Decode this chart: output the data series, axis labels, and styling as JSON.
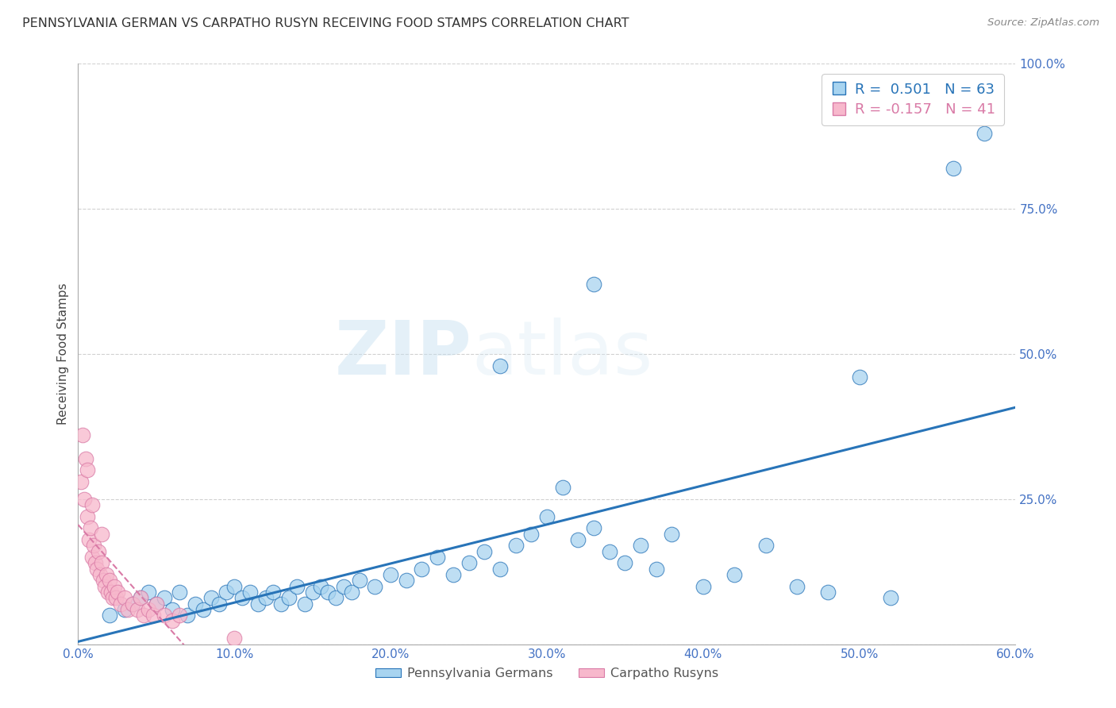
{
  "title": "PENNSYLVANIA GERMAN VS CARPATHO RUSYN RECEIVING FOOD STAMPS CORRELATION CHART",
  "source": "Source: ZipAtlas.com",
  "ylabel_label": "Receiving Food Stamps",
  "xlim": [
    0.0,
    0.6
  ],
  "ylim": [
    0.0,
    1.0
  ],
  "xticks": [
    0.0,
    0.1,
    0.2,
    0.3,
    0.4,
    0.5,
    0.6
  ],
  "yticks": [
    0.0,
    0.25,
    0.5,
    0.75,
    1.0
  ],
  "xticklabels": [
    "0.0%",
    "10.0%",
    "20.0%",
    "30.0%",
    "40.0%",
    "50.0%",
    "60.0%"
  ],
  "yticklabels": [
    "",
    "25.0%",
    "50.0%",
    "75.0%",
    "100.0%"
  ],
  "R_blue": 0.501,
  "N_blue": 63,
  "R_pink": -0.157,
  "N_pink": 41,
  "blue_color": "#a8d4f0",
  "pink_color": "#f7b8cc",
  "blue_line_color": "#2874b8",
  "pink_line_color": "#d97aa6",
  "watermark_zip": "ZIP",
  "watermark_atlas": "atlas",
  "legend_label_blue": "Pennsylvania Germans",
  "legend_label_pink": "Carpatho Rusyns",
  "blue_scatter_x": [
    0.02,
    0.03,
    0.035,
    0.04,
    0.045,
    0.05,
    0.055,
    0.06,
    0.065,
    0.07,
    0.075,
    0.08,
    0.085,
    0.09,
    0.095,
    0.1,
    0.105,
    0.11,
    0.115,
    0.12,
    0.125,
    0.13,
    0.135,
    0.14,
    0.145,
    0.15,
    0.155,
    0.16,
    0.165,
    0.17,
    0.175,
    0.18,
    0.19,
    0.2,
    0.21,
    0.22,
    0.23,
    0.24,
    0.25,
    0.26,
    0.27,
    0.28,
    0.29,
    0.3,
    0.31,
    0.32,
    0.33,
    0.34,
    0.35,
    0.36,
    0.37,
    0.38,
    0.4,
    0.42,
    0.44,
    0.46,
    0.48,
    0.5,
    0.52,
    0.56,
    0.58,
    0.27,
    0.33
  ],
  "blue_scatter_y": [
    0.05,
    0.06,
    0.07,
    0.08,
    0.09,
    0.07,
    0.08,
    0.06,
    0.09,
    0.05,
    0.07,
    0.06,
    0.08,
    0.07,
    0.09,
    0.1,
    0.08,
    0.09,
    0.07,
    0.08,
    0.09,
    0.07,
    0.08,
    0.1,
    0.07,
    0.09,
    0.1,
    0.09,
    0.08,
    0.1,
    0.09,
    0.11,
    0.1,
    0.12,
    0.11,
    0.13,
    0.15,
    0.12,
    0.14,
    0.16,
    0.13,
    0.17,
    0.19,
    0.22,
    0.27,
    0.18,
    0.2,
    0.16,
    0.14,
    0.17,
    0.13,
    0.19,
    0.1,
    0.12,
    0.17,
    0.1,
    0.09,
    0.46,
    0.08,
    0.82,
    0.88,
    0.48,
    0.62
  ],
  "pink_scatter_x": [
    0.002,
    0.004,
    0.005,
    0.006,
    0.007,
    0.008,
    0.009,
    0.01,
    0.011,
    0.012,
    0.013,
    0.014,
    0.015,
    0.016,
    0.017,
    0.018,
    0.019,
    0.02,
    0.021,
    0.022,
    0.023,
    0.024,
    0.025,
    0.027,
    0.03,
    0.032,
    0.035,
    0.038,
    0.04,
    0.042,
    0.045,
    0.048,
    0.05,
    0.055,
    0.06,
    0.065,
    0.003,
    0.006,
    0.009,
    0.015,
    0.1
  ],
  "pink_scatter_y": [
    0.28,
    0.25,
    0.32,
    0.22,
    0.18,
    0.2,
    0.15,
    0.17,
    0.14,
    0.13,
    0.16,
    0.12,
    0.14,
    0.11,
    0.1,
    0.12,
    0.09,
    0.11,
    0.09,
    0.08,
    0.1,
    0.08,
    0.09,
    0.07,
    0.08,
    0.06,
    0.07,
    0.06,
    0.08,
    0.05,
    0.06,
    0.05,
    0.07,
    0.05,
    0.04,
    0.05,
    0.36,
    0.3,
    0.24,
    0.19,
    0.01
  ],
  "background_color": "#ffffff",
  "plot_bg_color": "#ffffff",
  "tick_color": "#4472c4",
  "grid_color": "#cccccc"
}
